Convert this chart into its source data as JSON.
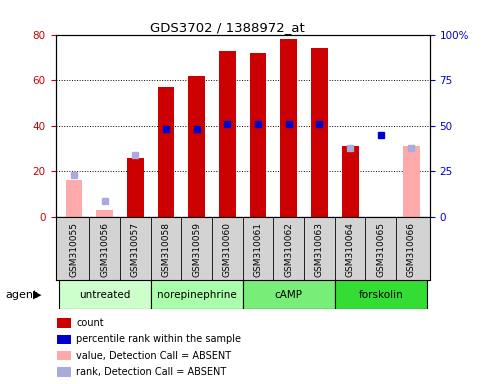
{
  "title": "GDS3702 / 1388972_at",
  "samples": [
    "GSM310055",
    "GSM310056",
    "GSM310057",
    "GSM310058",
    "GSM310059",
    "GSM310060",
    "GSM310061",
    "GSM310062",
    "GSM310063",
    "GSM310064",
    "GSM310065",
    "GSM310066"
  ],
  "count": [
    null,
    null,
    26,
    57,
    62,
    73,
    72,
    78,
    74,
    31,
    null,
    null
  ],
  "count_absent": [
    16,
    3,
    null,
    null,
    null,
    null,
    null,
    null,
    null,
    null,
    null,
    31
  ],
  "percentile_rank": [
    null,
    null,
    null,
    48,
    48,
    51,
    51,
    51,
    51,
    null,
    45,
    null
  ],
  "percentile_rank_absent": [
    23,
    9,
    34,
    null,
    null,
    null,
    null,
    null,
    null,
    38,
    null,
    38
  ],
  "groups": [
    {
      "label": "untreated",
      "samples": [
        0,
        1,
        2
      ],
      "color": "#ccffcc"
    },
    {
      "label": "norepinephrine",
      "samples": [
        3,
        4,
        5
      ],
      "color": "#aaff99"
    },
    {
      "label": "cAMP",
      "samples": [
        6,
        7,
        8
      ],
      "color": "#66ee55"
    },
    {
      "label": "forskolin",
      "samples": [
        9,
        10,
        11
      ],
      "color": "#33cc22"
    }
  ],
  "ylim_left": [
    0,
    80
  ],
  "ylim_right": [
    0,
    100
  ],
  "yticks_left": [
    0,
    20,
    40,
    60,
    80
  ],
  "yticks_right": [
    0,
    25,
    50,
    75,
    100
  ],
  "yticklabels_right": [
    "0",
    "25",
    "50",
    "75",
    "100%"
  ],
  "count_color": "#cc0000",
  "rank_color": "#0000cc",
  "count_absent_color": "#ffaaaa",
  "rank_absent_color": "#aaaadd",
  "background_color": "#ffffff",
  "agent_label": "agent",
  "legend": [
    {
      "color": "#cc0000",
      "label": "count"
    },
    {
      "color": "#0000cc",
      "label": "percentile rank within the sample"
    },
    {
      "color": "#ffaaaa",
      "label": "value, Detection Call = ABSENT"
    },
    {
      "color": "#aaaadd",
      "label": "rank, Detection Call = ABSENT"
    }
  ]
}
